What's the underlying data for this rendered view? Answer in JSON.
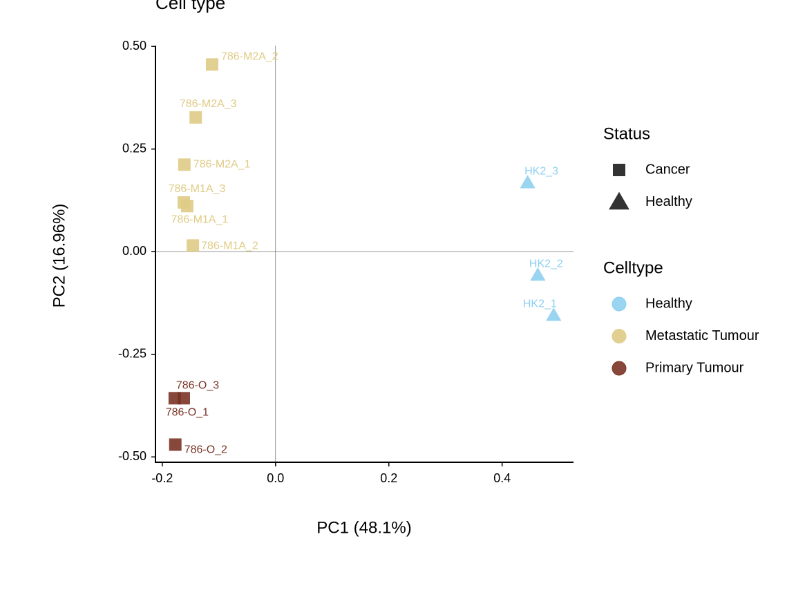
{
  "chart_data": {
    "type": "scatter",
    "title": "Cell type",
    "x_label": "PC1 (48.1%)",
    "y_label": "PC2 (16.96%)",
    "xlim": [
      -0.212,
      0.526
    ],
    "ylim": [
      -0.513,
      0.502
    ],
    "xticks": [
      -0.2,
      {
        "value": 0,
        "label": "0.0"
      },
      0.2,
      0.4
    ],
    "yticks": [
      {
        "value": 0.5,
        "label": "0.50"
      },
      0.25,
      {
        "value": 0,
        "label": "0.00"
      },
      -0.25,
      {
        "value": -0.5,
        "label": "-0.50"
      }
    ],
    "grid": false,
    "legend_position": "right",
    "status_legend": {
      "title": "Status",
      "entries": [
        {
          "name": "Cancer",
          "marker": "square",
          "color": "#333333"
        },
        {
          "name": "Healthy",
          "marker": "triangle",
          "color": "#333333"
        }
      ]
    },
    "legend_title": "Celltype",
    "series": [
      {
        "name": "Healthy",
        "color": "#8ecff0",
        "marker": "triangle",
        "labels": [
          "HK2_3",
          "HK2_2",
          "HK2_1"
        ],
        "x": [
          0.445,
          0.463,
          0.491
        ],
        "y": [
          0.168,
          -0.057,
          -0.155
        ]
      },
      {
        "name": "Metastatic Tumour",
        "color": "#dfcb86",
        "marker": "square",
        "labels": [
          "786-M2A_2",
          "786-M2A_3",
          "786-M2A_1",
          "786-M1A_3",
          "786-M1A_1",
          "786-M1A_2"
        ],
        "x": [
          -0.112,
          -0.141,
          -0.161,
          -0.162,
          -0.156,
          -0.146
        ],
        "y": [
          0.456,
          0.327,
          0.212,
          0.12,
          0.111,
          0.015
        ]
      },
      {
        "name": "Primary Tumour",
        "color": "#7a3326",
        "marker": "square",
        "labels": [
          "786-O_3",
          "786-O_1",
          "786-O_2"
        ],
        "x": [
          -0.162,
          -0.178,
          -0.177
        ],
        "y": [
          -0.357,
          -0.357,
          -0.47
        ]
      }
    ]
  }
}
